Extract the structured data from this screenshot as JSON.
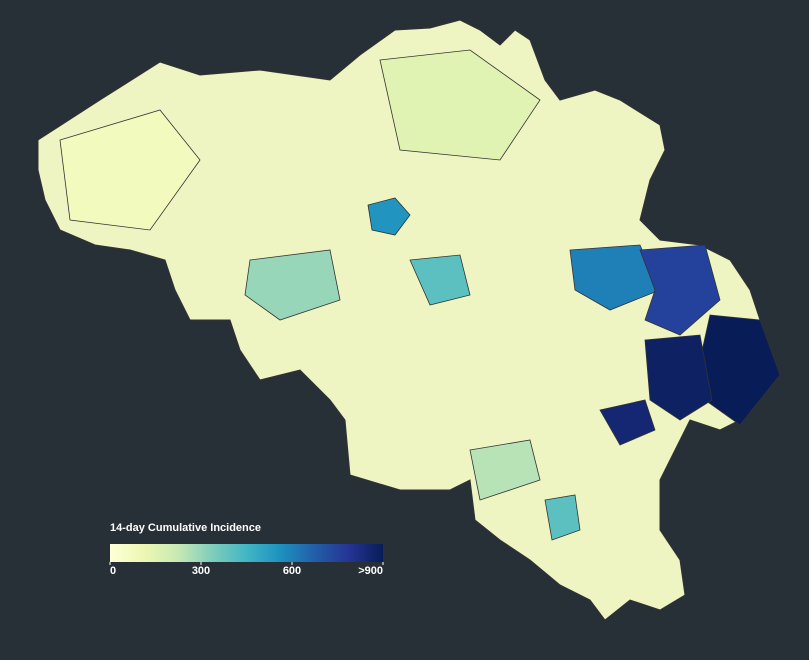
{
  "chart_data": {
    "type": "choropleth",
    "legend_title": "14-day Cumulative Incidence",
    "colorscale": [
      "#ffffd9",
      "#edf8b1",
      "#c7e9b4",
      "#7fcdbb",
      "#41b6c4",
      "#1d91c0",
      "#225ea8",
      "#253494",
      "#081d58"
    ],
    "range": [
      0,
      900
    ],
    "ticks": [
      0,
      300,
      600,
      {
        "value": 900,
        "label": ">900"
      }
    ],
    "regions": [
      {
        "value": 80
      },
      {
        "value": 150
      },
      {
        "value": 300
      },
      {
        "value": 550
      },
      {
        "value": 400
      },
      {
        "value": 600
      },
      {
        "value": 750
      },
      {
        "value": 900
      },
      {
        "value": 880
      },
      {
        "value": 850
      },
      {
        "value": 400
      },
      {
        "value": 250
      }
    ]
  }
}
